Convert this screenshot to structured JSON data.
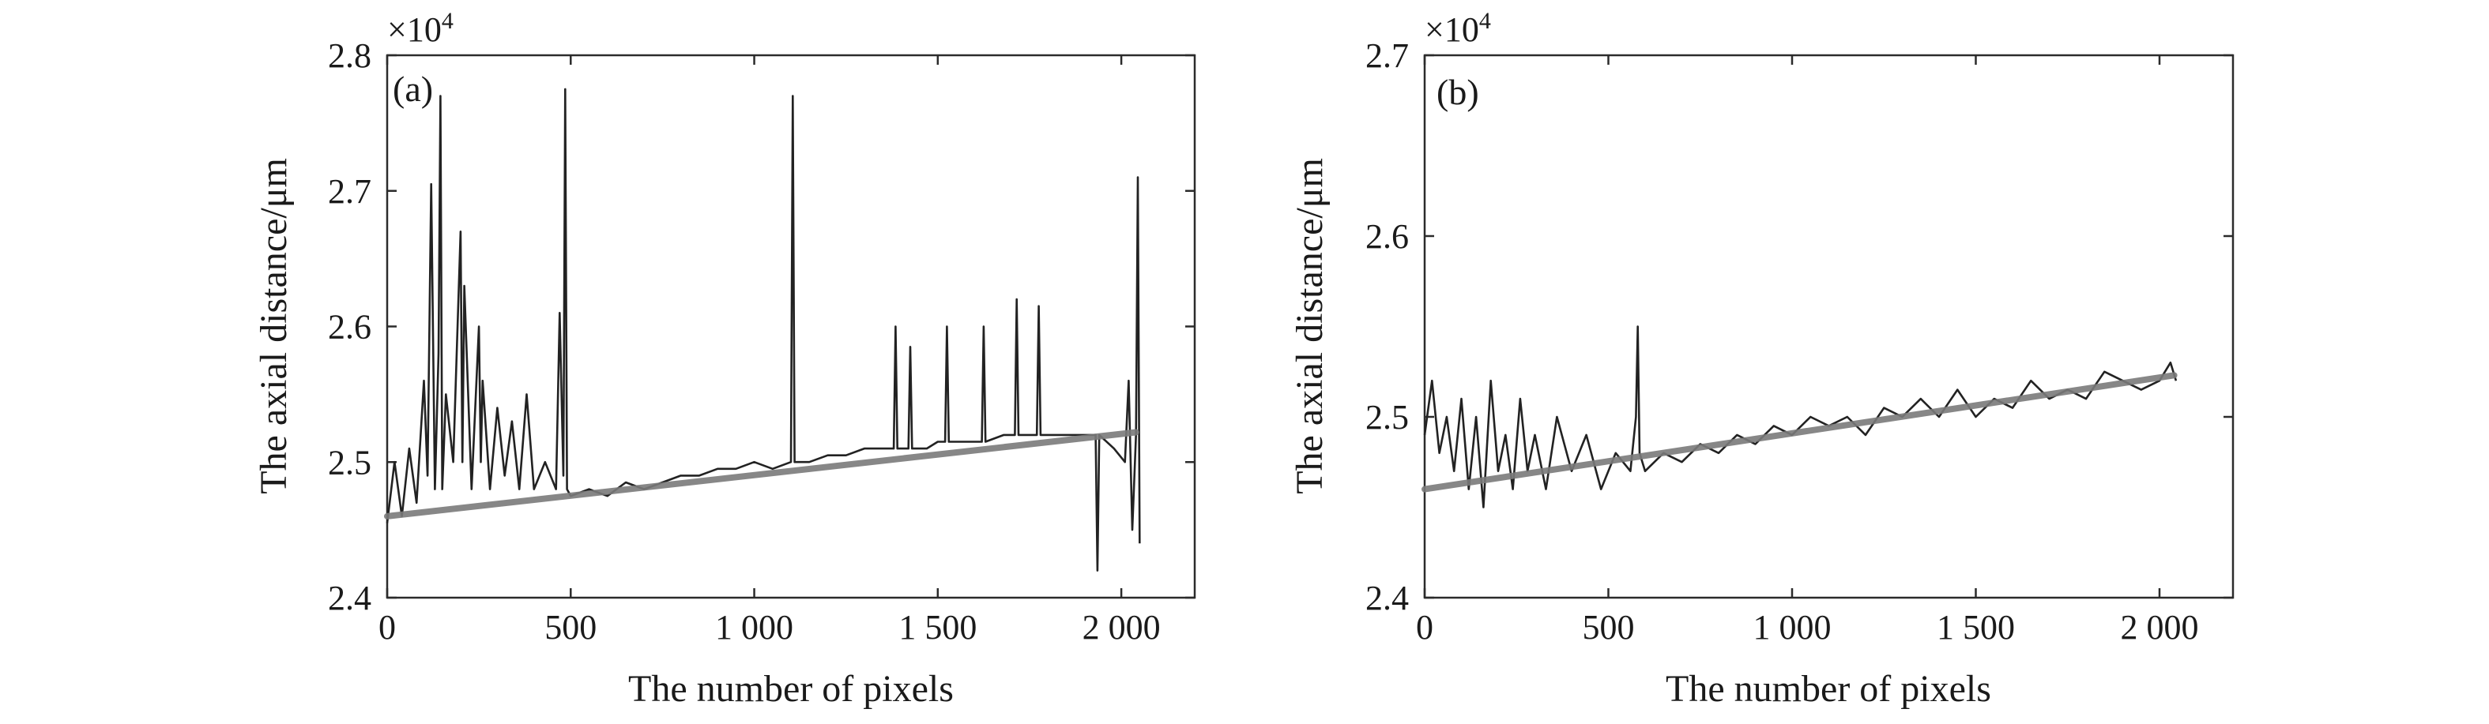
{
  "chart_data": [
    {
      "type": "line",
      "panel_label": "(a)",
      "xlabel": "The number of pixels",
      "ylabel": "The axial distance/μm",
      "y_multiplier_label": "×10",
      "y_multiplier_exp": "4",
      "xlim": [
        0,
        2200
      ],
      "ylim": [
        2.4,
        2.8
      ],
      "x_ticks": [
        0,
        500,
        1000,
        1500,
        2000
      ],
      "x_tick_labels": [
        "0",
        "500",
        "1 000",
        "1 500",
        "2 000"
      ],
      "y_ticks": [
        2.4,
        2.5,
        2.6,
        2.7,
        2.8
      ],
      "y_tick_labels": [
        "2.4",
        "2.5",
        "2.6",
        "2.7",
        "2.8"
      ],
      "grid": false,
      "series": [
        {
          "role": "measured",
          "color": "#222222",
          "x": [
            0,
            20,
            40,
            60,
            80,
            100,
            110,
            120,
            130,
            140,
            145,
            150,
            160,
            180,
            200,
            205,
            210,
            230,
            250,
            255,
            260,
            280,
            300,
            320,
            340,
            360,
            380,
            400,
            430,
            460,
            470,
            480,
            485,
            490,
            500,
            550,
            600,
            650,
            700,
            750,
            800,
            850,
            900,
            950,
            1000,
            1050,
            1100,
            1105,
            1110,
            1150,
            1200,
            1250,
            1300,
            1350,
            1380,
            1385,
            1390,
            1420,
            1425,
            1430,
            1470,
            1500,
            1520,
            1525,
            1530,
            1580,
            1620,
            1625,
            1630,
            1680,
            1710,
            1715,
            1720,
            1760,
            1770,
            1775,
            1780,
            1820,
            1860,
            1900,
            1930,
            1935,
            1940,
            1980,
            2010,
            2020,
            2030,
            2040,
            2045,
            2050
          ],
          "y": [
            2.455,
            2.5,
            2.46,
            2.51,
            2.47,
            2.56,
            2.49,
            2.705,
            2.48,
            2.58,
            2.77,
            2.48,
            2.55,
            2.5,
            2.67,
            2.5,
            2.63,
            2.48,
            2.6,
            2.5,
            2.56,
            2.48,
            2.54,
            2.49,
            2.53,
            2.48,
            2.55,
            2.48,
            2.5,
            2.48,
            2.61,
            2.49,
            2.775,
            2.48,
            2.475,
            2.48,
            2.475,
            2.485,
            2.48,
            2.485,
            2.49,
            2.49,
            2.495,
            2.495,
            2.5,
            2.495,
            2.5,
            2.77,
            2.5,
            2.5,
            2.505,
            2.505,
            2.51,
            2.51,
            2.51,
            2.6,
            2.51,
            2.51,
            2.585,
            2.51,
            2.51,
            2.515,
            2.515,
            2.6,
            2.515,
            2.515,
            2.515,
            2.6,
            2.515,
            2.52,
            2.52,
            2.62,
            2.52,
            2.52,
            2.52,
            2.615,
            2.52,
            2.52,
            2.52,
            2.52,
            2.52,
            2.42,
            2.52,
            2.51,
            2.5,
            2.56,
            2.45,
            2.52,
            2.71,
            2.44
          ]
        },
        {
          "role": "fit",
          "color": "#7a7a7a",
          "x": [
            0,
            2040
          ],
          "y": [
            2.46,
            2.522
          ]
        }
      ]
    },
    {
      "type": "line",
      "panel_label": "(b)",
      "xlabel": "The number of pixels",
      "ylabel": "The axial distance/μm",
      "y_multiplier_label": "×10",
      "y_multiplier_exp": "4",
      "xlim": [
        0,
        2200
      ],
      "ylim": [
        2.4,
        2.7
      ],
      "x_ticks": [
        0,
        500,
        1000,
        1500,
        2000
      ],
      "x_tick_labels": [
        "0",
        "500",
        "1 000",
        "1 500",
        "2 000"
      ],
      "y_ticks": [
        2.4,
        2.5,
        2.6,
        2.7
      ],
      "y_tick_labels": [
        "2.4",
        "2.5",
        "2.6",
        "2.7"
      ],
      "grid": false,
      "series": [
        {
          "role": "measured",
          "color": "#222222",
          "x": [
            0,
            20,
            40,
            60,
            80,
            100,
            120,
            140,
            160,
            180,
            200,
            220,
            240,
            260,
            280,
            300,
            330,
            360,
            400,
            440,
            480,
            520,
            560,
            575,
            580,
            585,
            600,
            650,
            700,
            750,
            800,
            850,
            900,
            950,
            1000,
            1050,
            1100,
            1150,
            1200,
            1250,
            1300,
            1350,
            1400,
            1450,
            1500,
            1550,
            1600,
            1650,
            1700,
            1750,
            1800,
            1850,
            1900,
            1950,
            2000,
            2030,
            2045
          ],
          "y": [
            2.49,
            2.52,
            2.48,
            2.5,
            2.47,
            2.51,
            2.46,
            2.5,
            2.45,
            2.52,
            2.47,
            2.49,
            2.46,
            2.51,
            2.47,
            2.49,
            2.46,
            2.5,
            2.47,
            2.49,
            2.46,
            2.48,
            2.47,
            2.5,
            2.55,
            2.48,
            2.47,
            2.48,
            2.475,
            2.485,
            2.48,
            2.49,
            2.485,
            2.495,
            2.49,
            2.5,
            2.495,
            2.5,
            2.49,
            2.505,
            2.5,
            2.51,
            2.5,
            2.515,
            2.5,
            2.51,
            2.505,
            2.52,
            2.51,
            2.515,
            2.51,
            2.525,
            2.52,
            2.515,
            2.52,
            2.53,
            2.52
          ]
        },
        {
          "role": "fit",
          "color": "#7a7a7a",
          "x": [
            0,
            2040
          ],
          "y": [
            2.46,
            2.523
          ]
        }
      ]
    }
  ]
}
